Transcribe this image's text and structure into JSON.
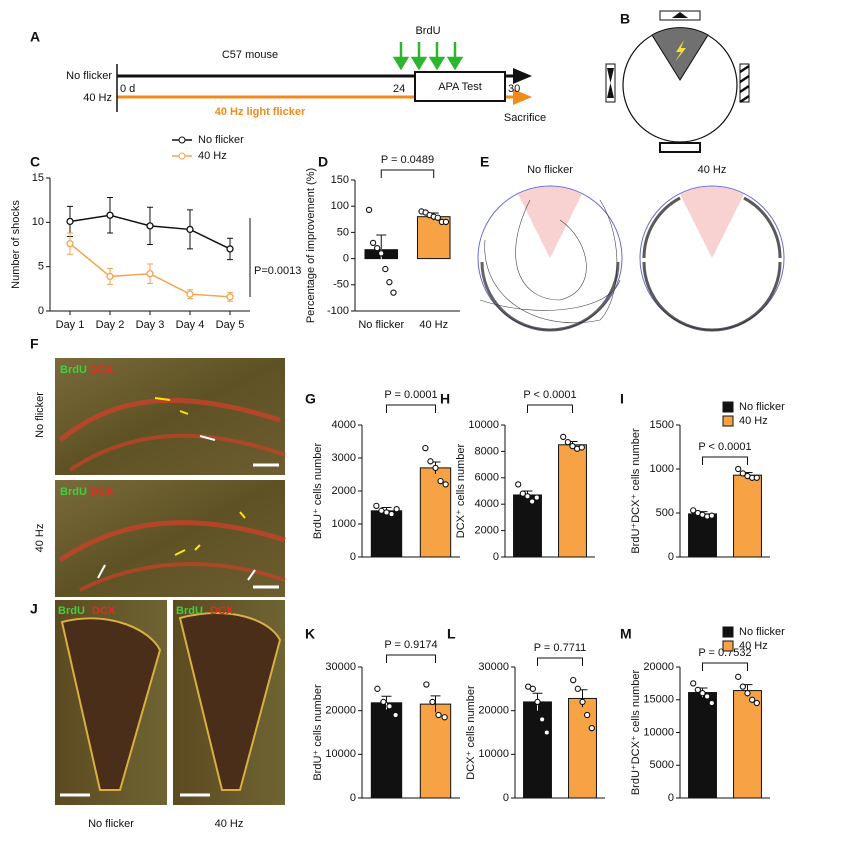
{
  "panel_labels": [
    "A",
    "B",
    "C",
    "D",
    "E",
    "F",
    "G",
    "H",
    "I",
    "J",
    "K",
    "L",
    "M"
  ],
  "timeline": {
    "mouse": "C57 mouse",
    "brdu": "BrdU",
    "row1": "No flicker",
    "row2": "40 Hz",
    "day0": "0 d",
    "day24": "24",
    "day30": "30",
    "test": "APA Test",
    "flicker": "40 Hz light flicker",
    "end": "Sacrifice"
  },
  "tracks": {
    "titles": [
      "No flicker",
      "40 Hz"
    ]
  },
  "micrographs": {
    "stain_green": "BrdU",
    "stain_red": "DCX",
    "f_rows": [
      "No flicker",
      "40 Hz"
    ],
    "j_cols": [
      "No flicker",
      "40 Hz"
    ]
  },
  "chart_data": [
    {
      "type": "line",
      "ylabel": "Number of shocks",
      "categories": [
        "Day 1",
        "Day 2",
        "Day 3",
        "Day 4",
        "Day 5"
      ],
      "ylim": [
        0,
        15
      ],
      "yticks": [
        0,
        5,
        10,
        15
      ],
      "annotation": "P=0.0013",
      "series": [
        {
          "name": "No flicker",
          "color": "#111111",
          "values": [
            10.1,
            10.8,
            9.6,
            9.2,
            7.0
          ],
          "errors": [
            1.7,
            2.0,
            2.1,
            2.2,
            1.2
          ]
        },
        {
          "name": "40 Hz",
          "color": "#f4a44e",
          "values": [
            7.6,
            3.9,
            4.2,
            1.9,
            1.6
          ],
          "errors": [
            1.2,
            0.9,
            1.1,
            0.5,
            0.5
          ]
        }
      ]
    },
    {
      "type": "bar",
      "ylabel": "Percentage of improvement (%)",
      "categories": [
        "No flicker",
        "40 Hz"
      ],
      "colors": [
        "#111111",
        "#f7a345"
      ],
      "values": [
        17,
        80
      ],
      "errors": [
        28,
        7
      ],
      "points": [
        [
          93,
          30,
          20,
          10,
          -20,
          -45,
          -65
        ],
        [
          90,
          88,
          83,
          80,
          78,
          70,
          70
        ]
      ],
      "ylim": [
        -100,
        150
      ],
      "yticks": [
        -100,
        -50,
        0,
        50,
        100,
        150
      ],
      "annotation": "P = 0.0489"
    },
    {
      "type": "bar",
      "ylabel": "BrdU⁺ cells number",
      "colors": [
        "#111111",
        "#f7a345"
      ],
      "values": [
        1400,
        2700
      ],
      "errors": [
        100,
        180
      ],
      "points": [
        [
          1550,
          1400,
          1350,
          1300,
          1450
        ],
        [
          3300,
          2900,
          2700,
          2300,
          2200
        ]
      ],
      "ylim": [
        0,
        4000
      ],
      "yticks": [
        0,
        1000,
        2000,
        3000,
        4000
      ],
      "annotation": "P = 0.0001"
    },
    {
      "type": "bar",
      "ylabel": "DCX⁺ cells number",
      "colors": [
        "#111111",
        "#f7a345"
      ],
      "values": [
        4700,
        8500
      ],
      "errors": [
        300,
        250
      ],
      "points": [
        [
          5500,
          4800,
          4600,
          4200,
          4500
        ],
        [
          9100,
          8700,
          8400,
          8200,
          8300
        ]
      ],
      "ylim": [
        0,
        10000
      ],
      "yticks": [
        0,
        2000,
        4000,
        6000,
        8000,
        10000
      ],
      "annotation": "P < 0.0001"
    },
    {
      "type": "bar",
      "ylabel": "BrdU⁺DCX⁺ cells number",
      "colors": [
        "#111111",
        "#f7a345"
      ],
      "legend": [
        "No flicker",
        "40 Hz"
      ],
      "values": [
        490,
        930
      ],
      "errors": [
        25,
        30
      ],
      "points": [
        [
          530,
          500,
          480,
          460,
          470
        ],
        [
          1000,
          950,
          920,
          900,
          900
        ]
      ],
      "ylim": [
        0,
        1500
      ],
      "yticks": [
        0,
        500,
        1000,
        1500
      ],
      "annotation": "P < 0.0001"
    },
    {
      "type": "bar",
      "ylabel": "BrdU⁺ cells number",
      "colors": [
        "#111111",
        "#f7a345"
      ],
      "values": [
        21800,
        21500
      ],
      "errors": [
        1500,
        1900
      ],
      "points": [
        [
          25000,
          22000,
          21000,
          19000
        ],
        [
          26000,
          22000,
          19000,
          18500
        ]
      ],
      "ylim": [
        0,
        30000
      ],
      "yticks": [
        0,
        10000,
        20000,
        30000
      ],
      "annotation": "P = 0.9174"
    },
    {
      "type": "bar",
      "ylabel": "DCX⁺ cells number",
      "colors": [
        "#111111",
        "#f7a345"
      ],
      "values": [
        22000,
        22800
      ],
      "errors": [
        2000,
        2000
      ],
      "points": [
        [
          25500,
          25000,
          22000,
          18000,
          15000
        ],
        [
          27000,
          25000,
          22000,
          19000,
          16000
        ]
      ],
      "ylim": [
        0,
        30000
      ],
      "yticks": [
        0,
        10000,
        20000,
        30000
      ],
      "annotation": "P = 0.7711"
    },
    {
      "type": "bar",
      "ylabel": "BrdU⁺DCX⁺ cells number",
      "colors": [
        "#111111",
        "#f7a345"
      ],
      "legend": [
        "No flicker",
        "40 Hz"
      ],
      "values": [
        16100,
        16400
      ],
      "errors": [
        700,
        900
      ],
      "points": [
        [
          17500,
          16500,
          16000,
          15500,
          14500
        ],
        [
          18500,
          17000,
          16000,
          15000,
          14500
        ]
      ],
      "ylim": [
        0,
        20000
      ],
      "yticks": [
        0,
        5000,
        10000,
        15000,
        20000
      ],
      "annotation": "P = 0.7532"
    }
  ]
}
